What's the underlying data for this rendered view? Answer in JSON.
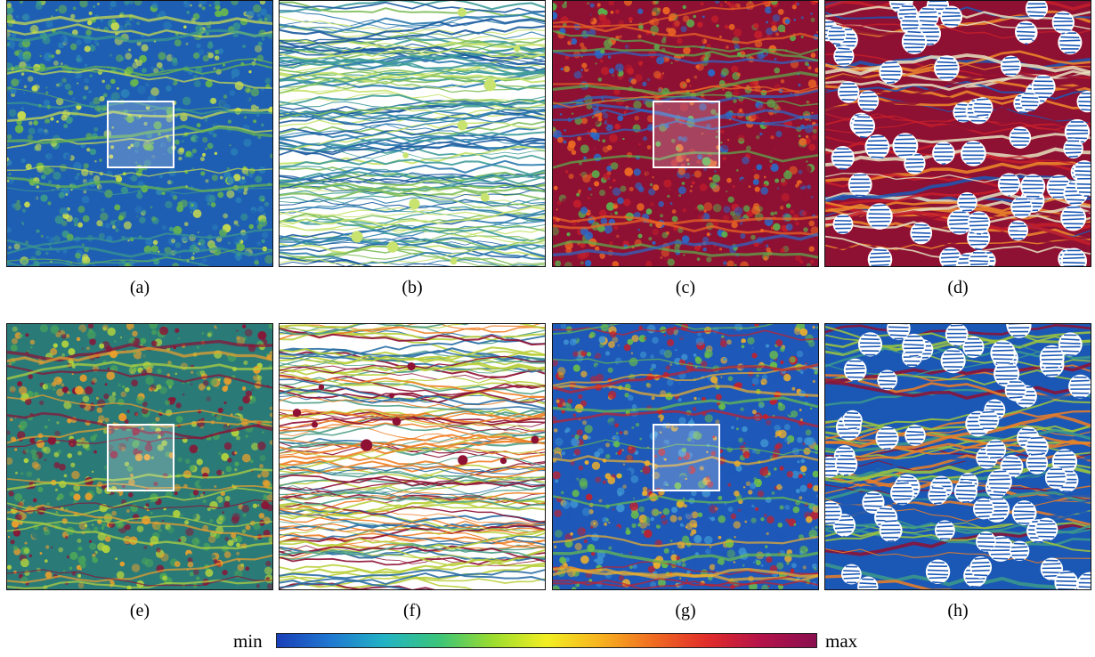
{
  "panels": [
    {
      "label": "(a)",
      "theme": "field",
      "palette": [
        "#1f5fb3",
        "#2a7fb8",
        "#3c9a8a",
        "#69b84b",
        "#cfe14a"
      ],
      "has_inset": true
    },
    {
      "label": "(b)",
      "theme": "streams",
      "palette": [
        "#1b5a9f",
        "#2c7cb0",
        "#3f9c9a",
        "#7fbf5b",
        "#c8e36e"
      ],
      "has_inset": false
    },
    {
      "label": "(c)",
      "theme": "field",
      "palette": [
        "#8e1033",
        "#c61f2a",
        "#f06a22",
        "#5ab24c",
        "#2a6ac8"
      ],
      "has_inset": true
    },
    {
      "label": "(d)",
      "theme": "circles",
      "palette": [
        "#8e1033",
        "#c61f2a",
        "#ef8a2a",
        "#e6e2c0",
        "#1b58b5"
      ],
      "has_inset": false
    },
    {
      "label": "(e)",
      "theme": "field",
      "palette": [
        "#2a7a78",
        "#4ca658",
        "#b6d63c",
        "#f0a12a",
        "#8e1033"
      ],
      "has_inset": true
    },
    {
      "label": "(f)",
      "theme": "streams",
      "palette": [
        "#2a6fa5",
        "#4e9f87",
        "#b9cf3a",
        "#ef7e24",
        "#8e1033"
      ],
      "has_inset": false
    },
    {
      "label": "(g)",
      "theme": "field",
      "palette": [
        "#1e58b8",
        "#3e94d2",
        "#6bbf48",
        "#f0b02a",
        "#c61f2a"
      ],
      "has_inset": true
    },
    {
      "label": "(h)",
      "theme": "circles",
      "palette": [
        "#1b58b5",
        "#3c9a8a",
        "#9fc63c",
        "#ef7e24",
        "#8e1033"
      ],
      "has_inset": false
    }
  ],
  "colorbar": {
    "min_label": "min",
    "max_label": "max",
    "stops": [
      "#1a3fb8",
      "#1f78d1",
      "#22b3c4",
      "#3bc47a",
      "#9bdc2f",
      "#f2ef22",
      "#f7b21f",
      "#f06a22",
      "#e02b2b",
      "#b3124a",
      "#8a0f4f"
    ]
  }
}
